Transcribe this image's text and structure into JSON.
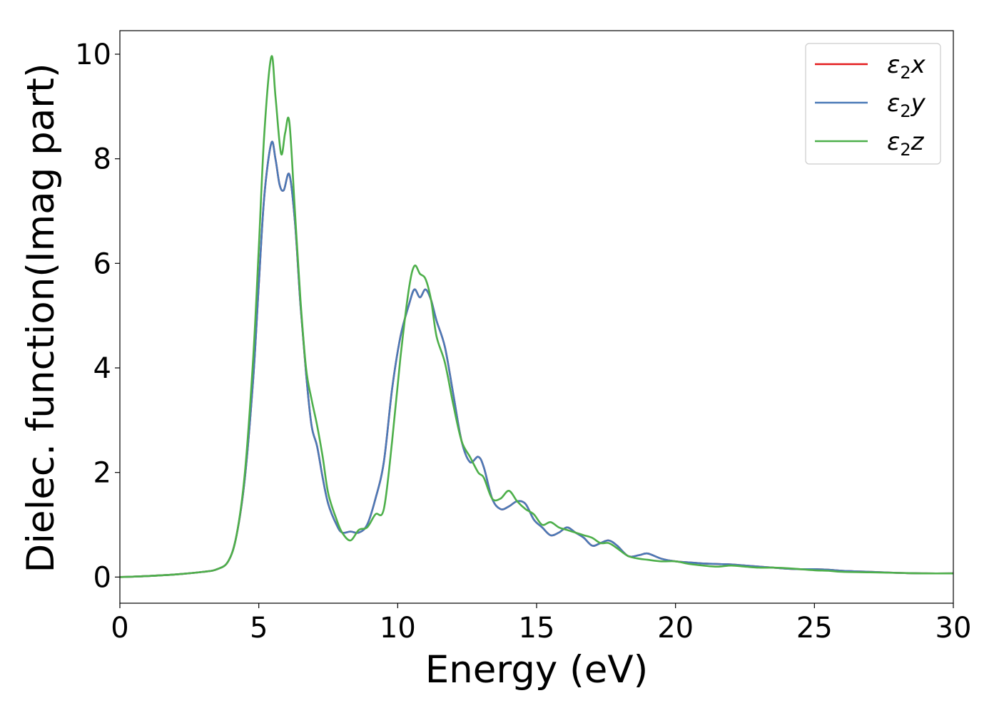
{
  "chart_data": {
    "type": "line",
    "xlabel": "Energy (eV)",
    "ylabel": "Dielec. function(Imag part)",
    "xlim": [
      0,
      30
    ],
    "ylim": [
      -0.5,
      10.45
    ],
    "xticks": [
      0,
      5,
      10,
      15,
      20,
      25,
      30
    ],
    "yticks": [
      0,
      2,
      4,
      6,
      8,
      10
    ],
    "grid": false,
    "legend_position": "top-right",
    "series": [
      {
        "name": "ε₂x",
        "legend_main": "ε",
        "legend_sub": "2",
        "legend_tail": "x",
        "color": "#e41a1c",
        "x": [
          0,
          1,
          2,
          3,
          3.5,
          3.9,
          4.2,
          4.5,
          4.8,
          5.0,
          5.2,
          5.45,
          5.6,
          5.75,
          5.9,
          6.1,
          6.3,
          6.5,
          6.7,
          6.9,
          7.1,
          7.3,
          7.5,
          7.8,
          8.0,
          8.3,
          8.6,
          8.9,
          9.2,
          9.5,
          9.8,
          10.1,
          10.4,
          10.6,
          10.8,
          11.0,
          11.2,
          11.4,
          11.7,
          12.0,
          12.3,
          12.6,
          12.9,
          13.1,
          13.4,
          13.7,
          14.0,
          14.3,
          14.6,
          14.9,
          15.2,
          15.5,
          15.8,
          16.1,
          16.4,
          16.7,
          17.0,
          17.3,
          17.6,
          17.9,
          18.3,
          18.7,
          19.0,
          19.5,
          20.0,
          20.5,
          21.0,
          21.5,
          22.0,
          22.5,
          23.0,
          23.5,
          24.0,
          24.5,
          25.0,
          25.5,
          26.0,
          27.0,
          28.0,
          29.0,
          30.0
        ],
        "y": [
          0.0,
          0.02,
          0.05,
          0.1,
          0.15,
          0.3,
          0.8,
          1.9,
          3.8,
          5.6,
          7.3,
          8.3,
          8.0,
          7.5,
          7.4,
          7.7,
          6.8,
          5.2,
          3.9,
          2.9,
          2.5,
          1.9,
          1.4,
          1.0,
          0.85,
          0.87,
          0.85,
          1.0,
          1.5,
          2.2,
          3.6,
          4.6,
          5.2,
          5.5,
          5.35,
          5.5,
          5.3,
          4.9,
          4.4,
          3.5,
          2.6,
          2.2,
          2.3,
          2.1,
          1.5,
          1.3,
          1.35,
          1.45,
          1.4,
          1.1,
          0.95,
          0.8,
          0.85,
          0.95,
          0.85,
          0.75,
          0.6,
          0.65,
          0.7,
          0.6,
          0.4,
          0.42,
          0.45,
          0.35,
          0.3,
          0.28,
          0.26,
          0.25,
          0.24,
          0.22,
          0.2,
          0.18,
          0.16,
          0.15,
          0.15,
          0.14,
          0.12,
          0.1,
          0.08,
          0.07,
          0.07
        ]
      },
      {
        "name": "ε₂y",
        "legend_main": "ε",
        "legend_sub": "2",
        "legend_tail": "y",
        "color": "#4a7ab7",
        "x": [
          0,
          1,
          2,
          3,
          3.5,
          3.9,
          4.2,
          4.5,
          4.8,
          5.0,
          5.2,
          5.45,
          5.6,
          5.75,
          5.9,
          6.1,
          6.3,
          6.5,
          6.7,
          6.9,
          7.1,
          7.3,
          7.5,
          7.8,
          8.0,
          8.3,
          8.6,
          8.9,
          9.2,
          9.5,
          9.8,
          10.1,
          10.4,
          10.6,
          10.8,
          11.0,
          11.2,
          11.4,
          11.7,
          12.0,
          12.3,
          12.6,
          12.9,
          13.1,
          13.4,
          13.7,
          14.0,
          14.3,
          14.6,
          14.9,
          15.2,
          15.5,
          15.8,
          16.1,
          16.4,
          16.7,
          17.0,
          17.3,
          17.6,
          17.9,
          18.3,
          18.7,
          19.0,
          19.5,
          20.0,
          20.5,
          21.0,
          21.5,
          22.0,
          22.5,
          23.0,
          23.5,
          24.0,
          24.5,
          25.0,
          25.5,
          26.0,
          27.0,
          28.0,
          29.0,
          30.0
        ],
        "y": [
          0.0,
          0.02,
          0.05,
          0.1,
          0.15,
          0.3,
          0.8,
          1.9,
          3.8,
          5.6,
          7.3,
          8.3,
          8.0,
          7.5,
          7.4,
          7.7,
          6.8,
          5.2,
          3.9,
          2.9,
          2.5,
          1.9,
          1.4,
          1.0,
          0.85,
          0.87,
          0.85,
          1.0,
          1.5,
          2.2,
          3.6,
          4.6,
          5.2,
          5.5,
          5.35,
          5.5,
          5.3,
          4.9,
          4.4,
          3.5,
          2.6,
          2.2,
          2.3,
          2.1,
          1.5,
          1.3,
          1.35,
          1.45,
          1.4,
          1.1,
          0.95,
          0.8,
          0.85,
          0.95,
          0.85,
          0.75,
          0.6,
          0.65,
          0.7,
          0.6,
          0.4,
          0.42,
          0.45,
          0.35,
          0.3,
          0.28,
          0.26,
          0.25,
          0.24,
          0.22,
          0.2,
          0.18,
          0.16,
          0.15,
          0.15,
          0.14,
          0.12,
          0.1,
          0.08,
          0.07,
          0.07
        ]
      },
      {
        "name": "ε₂z",
        "legend_main": "ε",
        "legend_sub": "2",
        "legend_tail": "z",
        "color": "#4daf4a",
        "x": [
          0,
          1,
          2,
          3,
          3.5,
          3.9,
          4.2,
          4.5,
          4.8,
          5.0,
          5.2,
          5.45,
          5.6,
          5.8,
          5.95,
          6.1,
          6.3,
          6.5,
          6.7,
          6.9,
          7.1,
          7.3,
          7.5,
          7.8,
          8.0,
          8.3,
          8.6,
          8.9,
          9.2,
          9.5,
          9.8,
          10.1,
          10.4,
          10.6,
          10.8,
          11.0,
          11.2,
          11.4,
          11.7,
          12.0,
          12.3,
          12.6,
          12.9,
          13.1,
          13.4,
          13.7,
          14.0,
          14.3,
          14.6,
          14.9,
          15.2,
          15.5,
          15.8,
          16.1,
          16.4,
          16.7,
          17.0,
          17.3,
          17.6,
          17.9,
          18.3,
          18.7,
          19.0,
          19.5,
          20.0,
          20.5,
          21.0,
          21.5,
          22.0,
          22.5,
          23.0,
          23.5,
          24.0,
          24.5,
          25.0,
          25.5,
          26.0,
          27.0,
          28.0,
          29.0,
          30.0
        ],
        "y": [
          0.0,
          0.02,
          0.05,
          0.1,
          0.15,
          0.3,
          0.8,
          2.0,
          4.2,
          6.3,
          8.5,
          9.95,
          9.2,
          8.1,
          8.5,
          8.7,
          7.0,
          5.3,
          4.0,
          3.4,
          2.9,
          2.3,
          1.6,
          1.1,
          0.85,
          0.7,
          0.9,
          0.95,
          1.2,
          1.3,
          2.6,
          4.2,
          5.5,
          5.95,
          5.8,
          5.7,
          5.3,
          4.6,
          4.1,
          3.3,
          2.6,
          2.3,
          2.0,
          1.9,
          1.5,
          1.5,
          1.65,
          1.45,
          1.3,
          1.2,
          1.0,
          1.05,
          0.95,
          0.9,
          0.85,
          0.8,
          0.75,
          0.65,
          0.65,
          0.55,
          0.4,
          0.35,
          0.33,
          0.3,
          0.3,
          0.25,
          0.22,
          0.2,
          0.22,
          0.2,
          0.18,
          0.18,
          0.17,
          0.15,
          0.13,
          0.12,
          0.1,
          0.09,
          0.08,
          0.07,
          0.07
        ]
      }
    ]
  }
}
